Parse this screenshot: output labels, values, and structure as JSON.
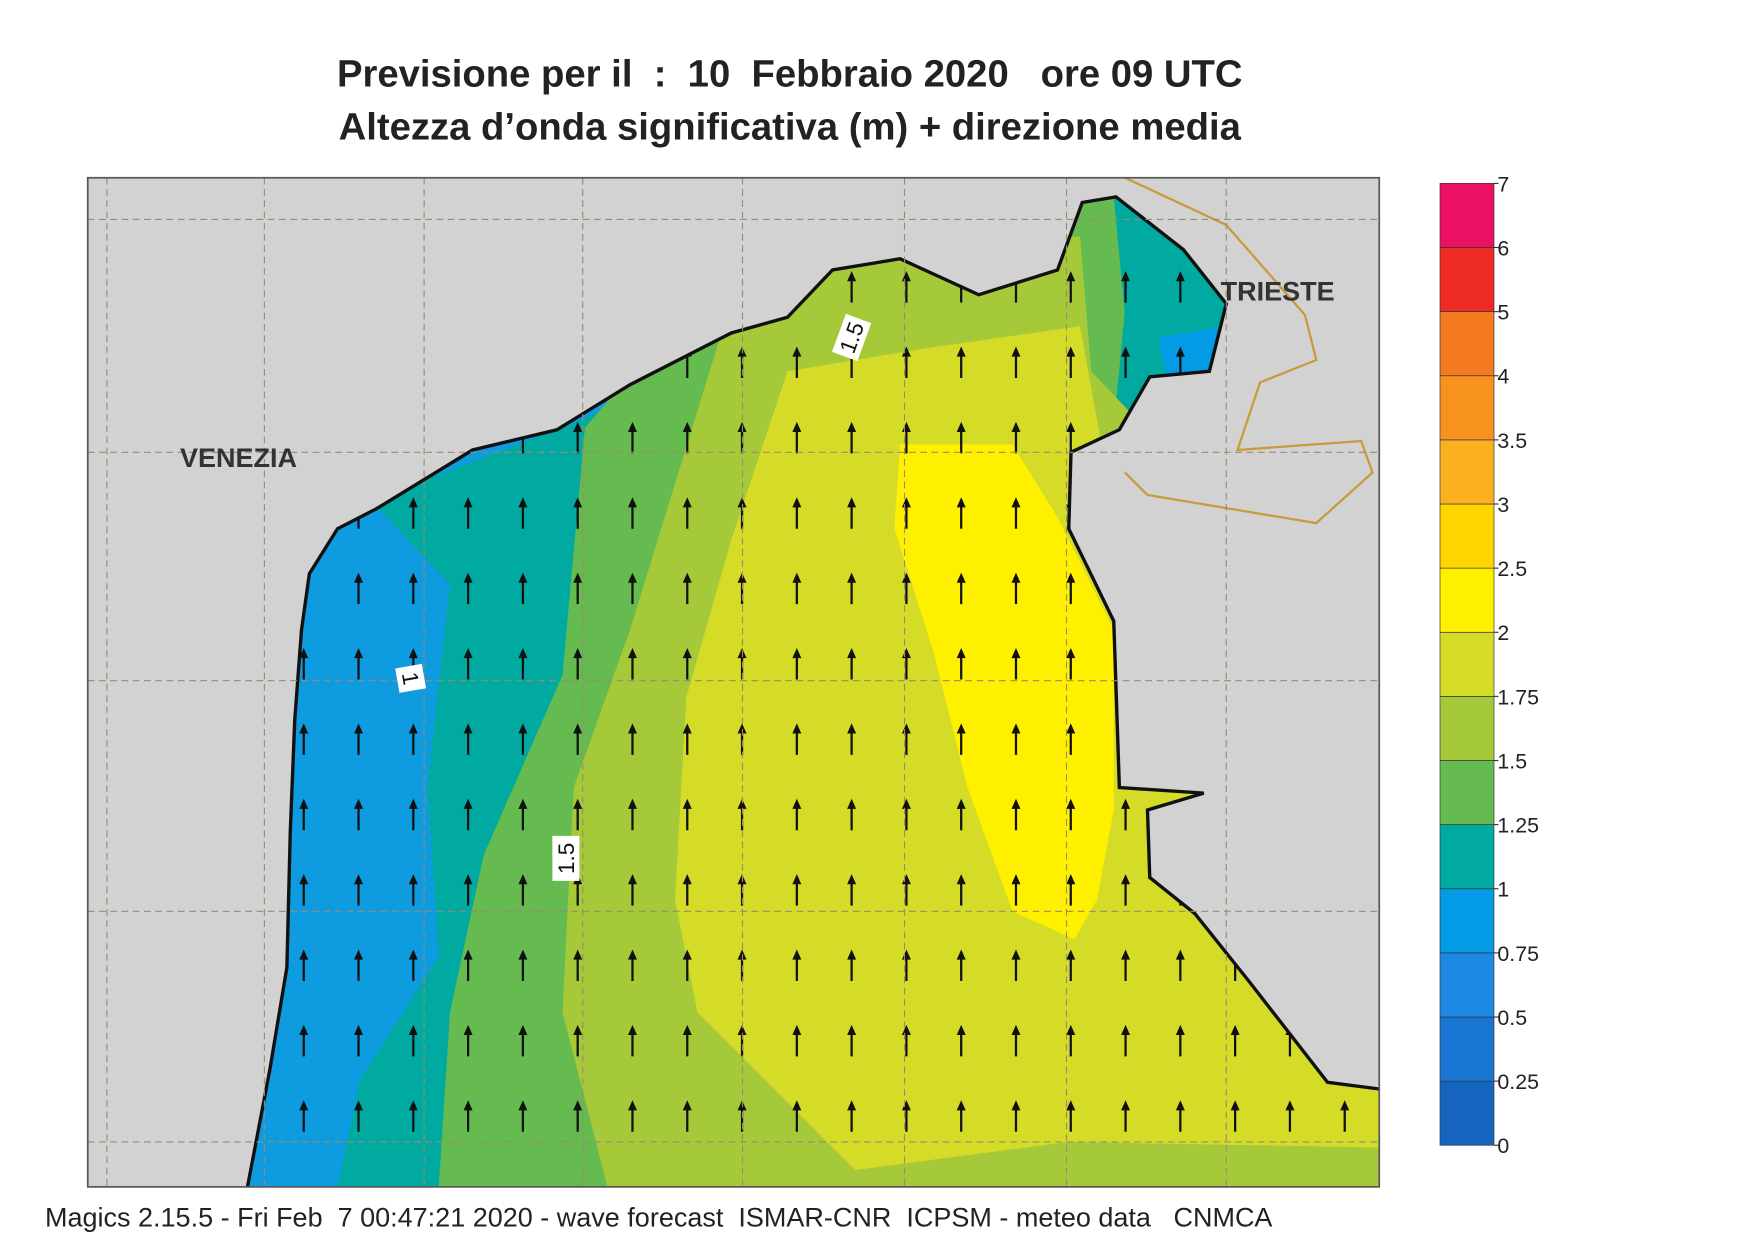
{
  "title": {
    "line1": "Previsione per il  :  10  Febbraio 2020   ore 09 UTC",
    "line2": "Altezza d’onda significativa (m) + direzione media"
  },
  "map": {
    "places": [
      "VENEZIA",
      "TRIESTE"
    ],
    "contour_labels": [
      1.5,
      1,
      1.5
    ]
  },
  "colorbar": {
    "ticks": [
      0,
      0.25,
      0.5,
      0.75,
      1,
      1.25,
      1.5,
      1.75,
      2,
      2.5,
      3,
      3.5,
      4,
      5,
      6,
      7
    ],
    "colors": [
      "#1565c0",
      "#1976d2",
      "#1e88e5",
      "#039be5",
      "#00aaa0",
      "#66bb50",
      "#a6c93a",
      "#d4dc28",
      "#fff000",
      "#ffd400",
      "#fbb020",
      "#f8921e",
      "#f47a20",
      "#ee2a24",
      "#ec1064"
    ]
  },
  "footer": "Magics 2.15.5 - Fri Feb  7 00:47:21 2020 - wave forecast  ISMAR-CNR  ICPSM - meteo data   CNMCA"
}
